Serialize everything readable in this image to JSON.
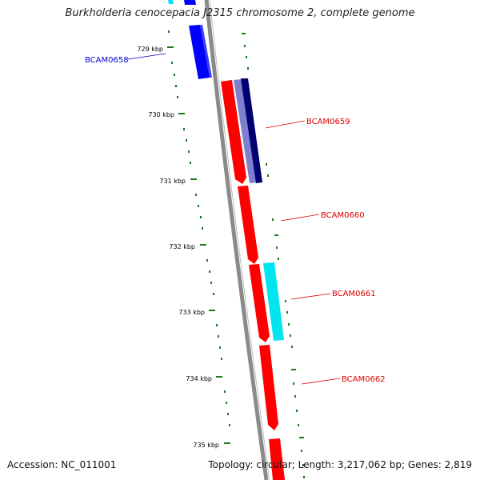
{
  "header": {
    "title": "Burkholderia cenocepacia J2315 chromosome 2, complete genome"
  },
  "footer": {
    "accession": "Accession: NC_011001",
    "summary": "Topology: circular; Length: 3,217,062 bp; Genes: 2,819"
  },
  "ticks": [
    {
      "label": "729 kbp"
    },
    {
      "label": "730 kbp"
    },
    {
      "label": "731 kbp"
    },
    {
      "label": "732 kbp"
    },
    {
      "label": "733 kbp"
    },
    {
      "label": "734 kbp"
    },
    {
      "label": "735 kbp"
    }
  ],
  "gene_labels": [
    {
      "name": "BCAM0658",
      "color": "#0000cc"
    },
    {
      "name": "BCAM0659",
      "color": "#dd0000"
    },
    {
      "name": "BCAM0660",
      "color": "#dd0000"
    },
    {
      "name": "BCAM0661",
      "color": "#dd0000"
    },
    {
      "name": "BCAM0662",
      "color": "#dd0000"
    }
  ],
  "colors": {
    "backbone": "#8a8a8a",
    "ticks": "#1a7a1a",
    "forward_cds": "#ff0000",
    "reverse_cds": "#0000ff",
    "light_blue": "#7f7fd0",
    "navy": "#000070",
    "cyan": "#00e5ee"
  }
}
